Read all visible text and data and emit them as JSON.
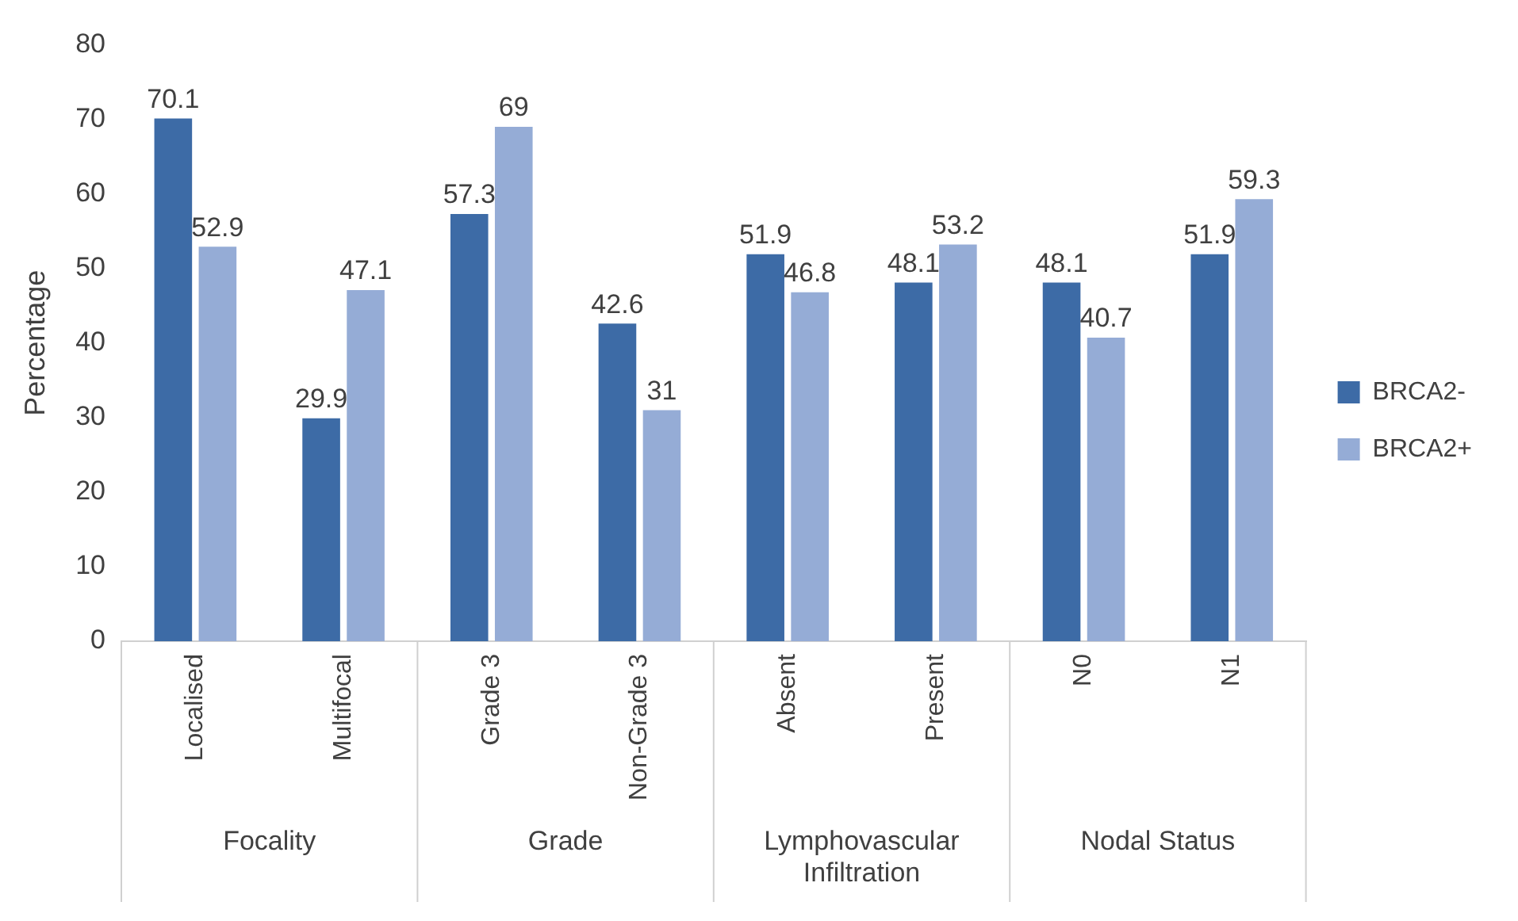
{
  "chart_data": {
    "type": "bar",
    "ylabel": "Percentage",
    "categories": [
      "Localised",
      "Multifocal",
      "Grade 3",
      "Non-Grade 3",
      "Absent",
      "Present",
      "N0",
      "N1"
    ],
    "series": [
      {
        "name": "BRCA2-",
        "color": "#3d6ba6",
        "values": [
          70.1,
          29.9,
          57.3,
          42.6,
          51.9,
          48.1,
          48.1,
          51.9
        ]
      },
      {
        "name": "BRCA2+",
        "color": "#95acd6",
        "values": [
          52.9,
          47.1,
          69,
          31,
          46.8,
          53.2,
          40.7,
          59.3
        ]
      }
    ],
    "ylim": [
      0,
      80
    ],
    "yticks": [
      0,
      10,
      20,
      30,
      40,
      50,
      60,
      70,
      80
    ],
    "grid": false,
    "legend": "right",
    "data_labels": true,
    "annotations": [
      "Focality",
      "Grade",
      "Lymphovascular Infiltration",
      "Nodal Status"
    ]
  }
}
